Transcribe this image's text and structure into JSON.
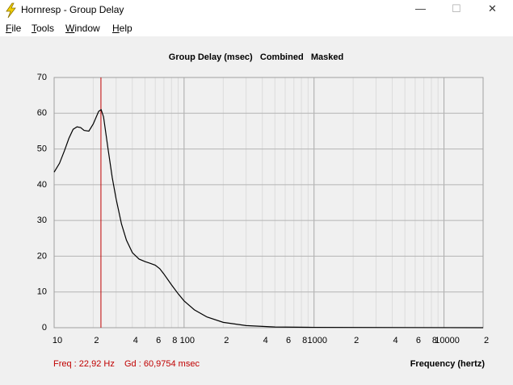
{
  "window": {
    "title": "Hornresp - Group Delay",
    "menu": [
      "File",
      "Tools",
      "Window",
      "Help"
    ]
  },
  "chart_data": {
    "type": "line",
    "title": "Group Delay (msec)   Combined   Masked",
    "x_label": "Frequency (hertz)",
    "x_log": true,
    "grid": true,
    "xlim": [
      10,
      20000
    ],
    "ylim": [
      0,
      70
    ],
    "yticks": [
      0,
      10,
      20,
      30,
      40,
      50,
      60,
      70
    ],
    "xticks": [
      10,
      {
        "value": 20,
        "label": "2"
      },
      {
        "value": 40,
        "label": "4"
      },
      {
        "value": 60,
        "label": "6"
      },
      {
        "value": 80,
        "label": "8"
      },
      100,
      {
        "value": 200,
        "label": "2"
      },
      {
        "value": 400,
        "label": "4"
      },
      {
        "value": 600,
        "label": "6"
      },
      {
        "value": 800,
        "label": "8"
      },
      1000,
      {
        "value": 2000,
        "label": "2"
      },
      {
        "value": 4000,
        "label": "4"
      },
      {
        "value": 6000,
        "label": "6"
      },
      {
        "value": 8000,
        "label": "8"
      },
      10000,
      {
        "value": 20000,
        "label": "2"
      }
    ],
    "xgrid_major": [
      100,
      1000,
      10000
    ],
    "xgrid_minor": [
      20,
      30,
      40,
      50,
      60,
      70,
      80,
      90,
      200,
      300,
      400,
      500,
      600,
      700,
      800,
      900,
      2000,
      3000,
      4000,
      5000,
      6000,
      7000,
      8000,
      9000
    ],
    "cursor": {
      "x": 22.92,
      "color": "#c00000",
      "freq_text": "Freq : 22,92 Hz",
      "gd_text": "Gd : 60,9754 msec"
    },
    "series": [
      {
        "color": "#000000",
        "x": [
          10,
          11,
          12,
          13,
          14,
          15,
          16,
          17,
          18.5,
          20,
          22,
          23,
          24,
          26,
          28,
          30,
          33,
          36,
          40,
          45,
          50,
          55,
          60,
          65,
          70,
          80,
          90,
          100,
          120,
          150,
          200,
          300,
          500,
          1000,
          20000
        ],
        "values": [
          43.5,
          46,
          49.5,
          53,
          55.5,
          56.2,
          56,
          55.2,
          55,
          57,
          60.5,
          61,
          59,
          50,
          42,
          36,
          29,
          24.5,
          21,
          19.2,
          18.5,
          18,
          17.5,
          16.5,
          15,
          12,
          9.5,
          7.5,
          5,
          3,
          1.5,
          0.6,
          0.2,
          0.1,
          0
        ]
      }
    ]
  }
}
